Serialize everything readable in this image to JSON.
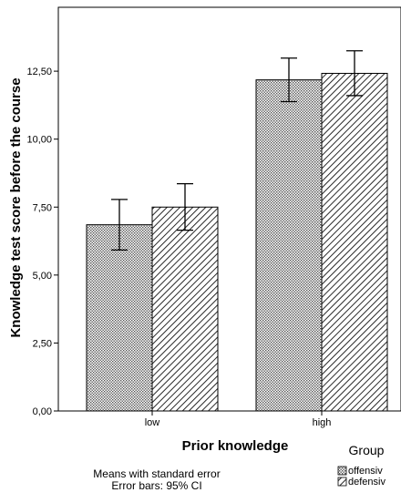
{
  "chart_data": {
    "type": "bar",
    "categories": [
      "low",
      "high"
    ],
    "series": [
      {
        "name": "offensiv",
        "values": [
          6.85,
          12.18
        ],
        "ci_low": [
          5.92,
          11.38
        ],
        "ci_high": [
          7.78,
          12.98
        ],
        "pattern": "dots"
      },
      {
        "name": "defensiv",
        "values": [
          7.5,
          12.42
        ],
        "ci_low": [
          6.65,
          11.6
        ],
        "ci_high": [
          8.36,
          13.25
        ],
        "pattern": "diagonal"
      }
    ],
    "ylim": [
      0,
      14.85
    ],
    "yticks": [
      "0,00",
      "2,50",
      "5,00",
      "7,50",
      "10,00",
      "12,50"
    ],
    "ytick_values": [
      0,
      2.5,
      5,
      7.5,
      10,
      12.5
    ],
    "xlabel": "Prior knowledge",
    "ylabel": "Knowledge test score before the course",
    "legend_title": "Group",
    "legend_position": "bottom-right",
    "grid": false
  },
  "footnote": {
    "line1": "Means with standard error",
    "line2": "Error bars: 95% CI"
  }
}
